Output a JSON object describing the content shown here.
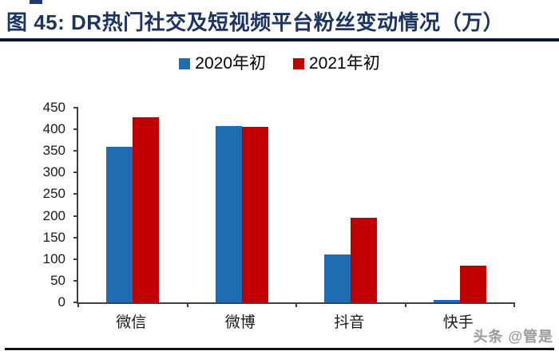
{
  "figure": {
    "title": "图 45: DR热门社交及短视频平台粉丝变动情况（万）",
    "watermark": "头条 @管是"
  },
  "colors": {
    "title": "#1C3463",
    "top_rule": "#0B1630",
    "bottom_rule": "#111111",
    "axis": "#404040",
    "series_2020_blue": "#1F6CB2",
    "series_2021_red": "#C00000"
  },
  "chart_data": {
    "type": "bar",
    "title": "DR热门社交及短视频平台粉丝变动情况（万）",
    "categories": [
      "微信",
      "微博",
      "抖音",
      "快手"
    ],
    "series": [
      {
        "name": "2020年初",
        "color": "#1F6CB2",
        "values": [
          360,
          408,
          110,
          5
        ]
      },
      {
        "name": "2021年初",
        "color": "#C00000",
        "values": [
          428,
          405,
          195,
          85
        ]
      }
    ],
    "ylim": [
      0,
      450
    ],
    "yticks": [
      0,
      50,
      100,
      150,
      200,
      250,
      300,
      350,
      400,
      450
    ],
    "xlabel": "",
    "ylabel": "",
    "grid": false,
    "legend_position": "top-center"
  }
}
